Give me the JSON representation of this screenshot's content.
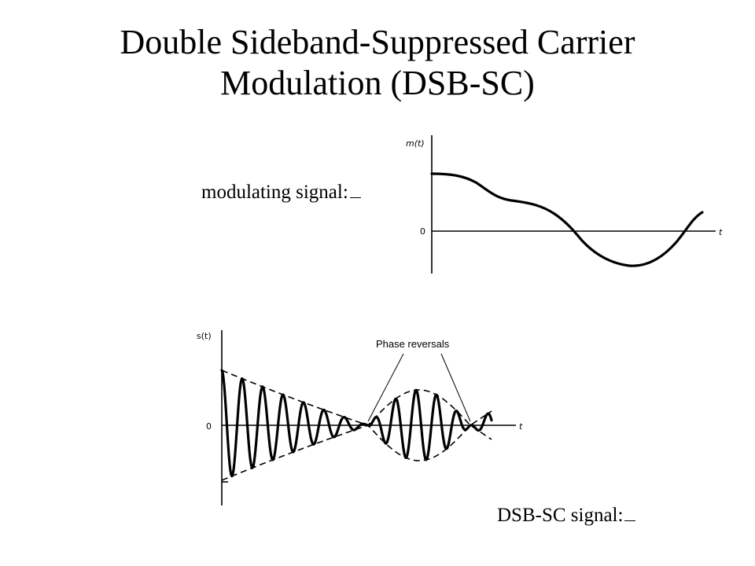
{
  "title": {
    "line1": "Double Sideband-Suppressed Carrier",
    "line2": "Modulation (DSB-SC)"
  },
  "labels": {
    "modulating": "modulating signal:",
    "dsb": "DSB-SC signal:"
  },
  "top_plot": {
    "ylabel": "m(t)",
    "origin": "0",
    "xlabel": "t"
  },
  "bottom_plot": {
    "ylabel": "s(t)",
    "origin": "0",
    "xlabel": "t",
    "annotation": "Phase reversals"
  }
}
